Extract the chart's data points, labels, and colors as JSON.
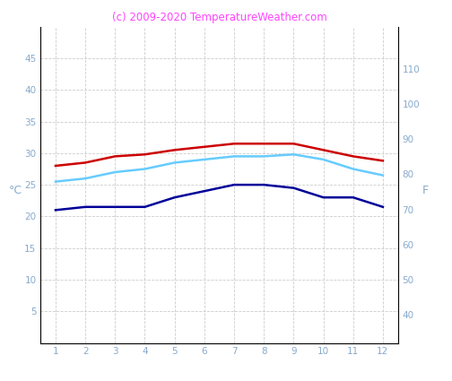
{
  "months": [
    1,
    2,
    3,
    4,
    5,
    6,
    7,
    8,
    9,
    10,
    11,
    12
  ],
  "red_line": [
    28.0,
    28.5,
    29.5,
    29.8,
    30.5,
    31.0,
    31.5,
    31.5,
    31.5,
    30.5,
    29.5,
    28.8
  ],
  "cyan_line": [
    25.5,
    26.0,
    27.0,
    27.5,
    28.5,
    29.0,
    29.5,
    29.5,
    29.8,
    29.0,
    27.5,
    26.5
  ],
  "blue_line": [
    21.0,
    21.5,
    21.5,
    21.5,
    23.0,
    24.0,
    25.0,
    25.0,
    24.5,
    23.0,
    23.0,
    21.5
  ],
  "red_color": "#cc0000",
  "cyan_color": "#66ccff",
  "blue_color": "#000099",
  "title": "(c) 2009-2020 TemperatureWeather.com",
  "title_color": "#ff44ff",
  "left_label": "°C",
  "right_label": "F",
  "ylim_left": [
    0,
    50
  ],
  "ylim_right": [
    32,
    122
  ],
  "yticks_left": [
    5,
    10,
    15,
    20,
    25,
    30,
    35,
    40,
    45
  ],
  "yticks_right": [
    40,
    50,
    60,
    70,
    80,
    90,
    100,
    110
  ],
  "xticks": [
    1,
    2,
    3,
    4,
    5,
    6,
    7,
    8,
    9,
    10,
    11,
    12
  ],
  "tick_color": "#88aacc",
  "spine_color": "#000000",
  "grid_color": "#cccccc",
  "background_color": "#ffffff",
  "line_width": 1.8,
  "title_fontsize": 8.5,
  "tick_fontsize": 7.5
}
